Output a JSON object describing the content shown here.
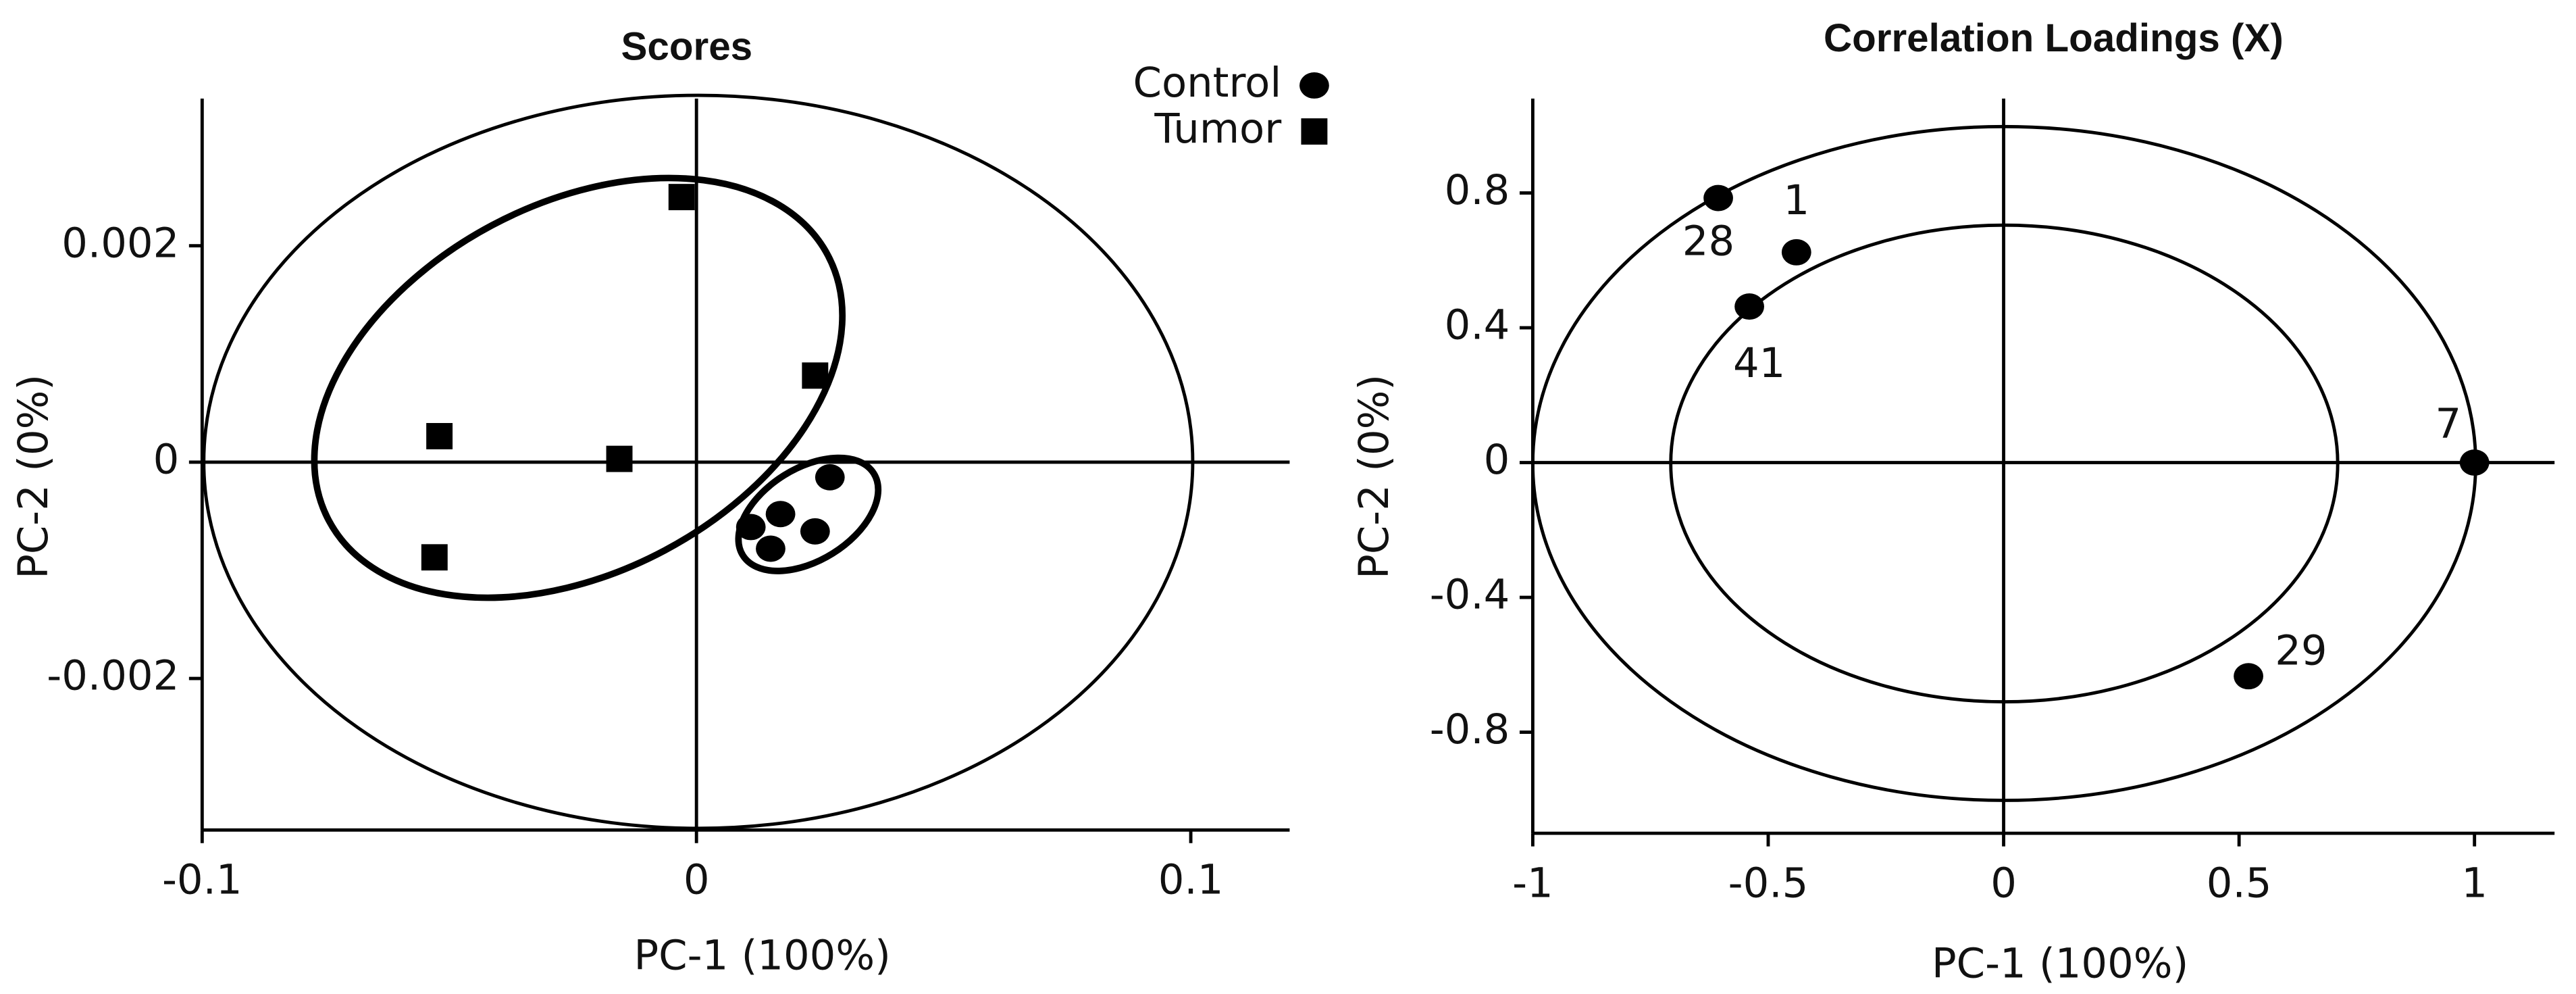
{
  "chart_data": [
    {
      "type": "scatter",
      "title": "Scores",
      "x_label": "PC-1 (100%)",
      "y_label": "PC-2 (0%)",
      "xlim": [
        -0.1,
        0.12
      ],
      "ylim": [
        -0.0034,
        0.00336
      ],
      "xticks": [
        -0.1,
        0,
        0.1
      ],
      "yticks": [
        -0.002,
        0,
        0.002
      ],
      "grid": false,
      "legend": "upper right",
      "series": [
        {
          "name": "Control",
          "color": "#000000",
          "marker": "circle",
          "x": [
            0.027,
            0.017,
            0.024,
            0.011,
            0.015
          ],
          "values": [
            -0.00014,
            -0.00048,
            -0.00064,
            -0.0006,
            -0.0008
          ]
        },
        {
          "name": "Tumor",
          "color": "#000000",
          "marker": "square",
          "x": [
            -0.003,
            0.024,
            -0.052,
            -0.0156,
            -0.053
          ],
          "values": [
            0.00245,
            0.0008,
            0.00024,
            3e-05,
            -0.00088
          ]
        }
      ]
    },
    {
      "type": "scatter",
      "title": "Correlation Loadings (X)",
      "x_label": "PC-1 (100%)",
      "y_label": "PC-2 (0%)",
      "xlim": [
        -1,
        1.17
      ],
      "ylim": [
        -1.1,
        1.08
      ],
      "xticks": [
        -1,
        -0.5,
        0,
        0.5,
        1
      ],
      "yticks": [
        -0.8,
        -0.4,
        0,
        0.4,
        0.8
      ],
      "grid": false,
      "series": [
        {
          "color": "#000000",
          "marker": "circle",
          "x": [
            -0.606,
            -0.44,
            -0.54,
            1.0,
            0.52
          ],
          "values": [
            0.785,
            0.624,
            0.463,
            0,
            -0.634
          ],
          "point_labels": [
            "28",
            "1",
            "41",
            "7",
            "29"
          ]
        }
      ]
    }
  ]
}
